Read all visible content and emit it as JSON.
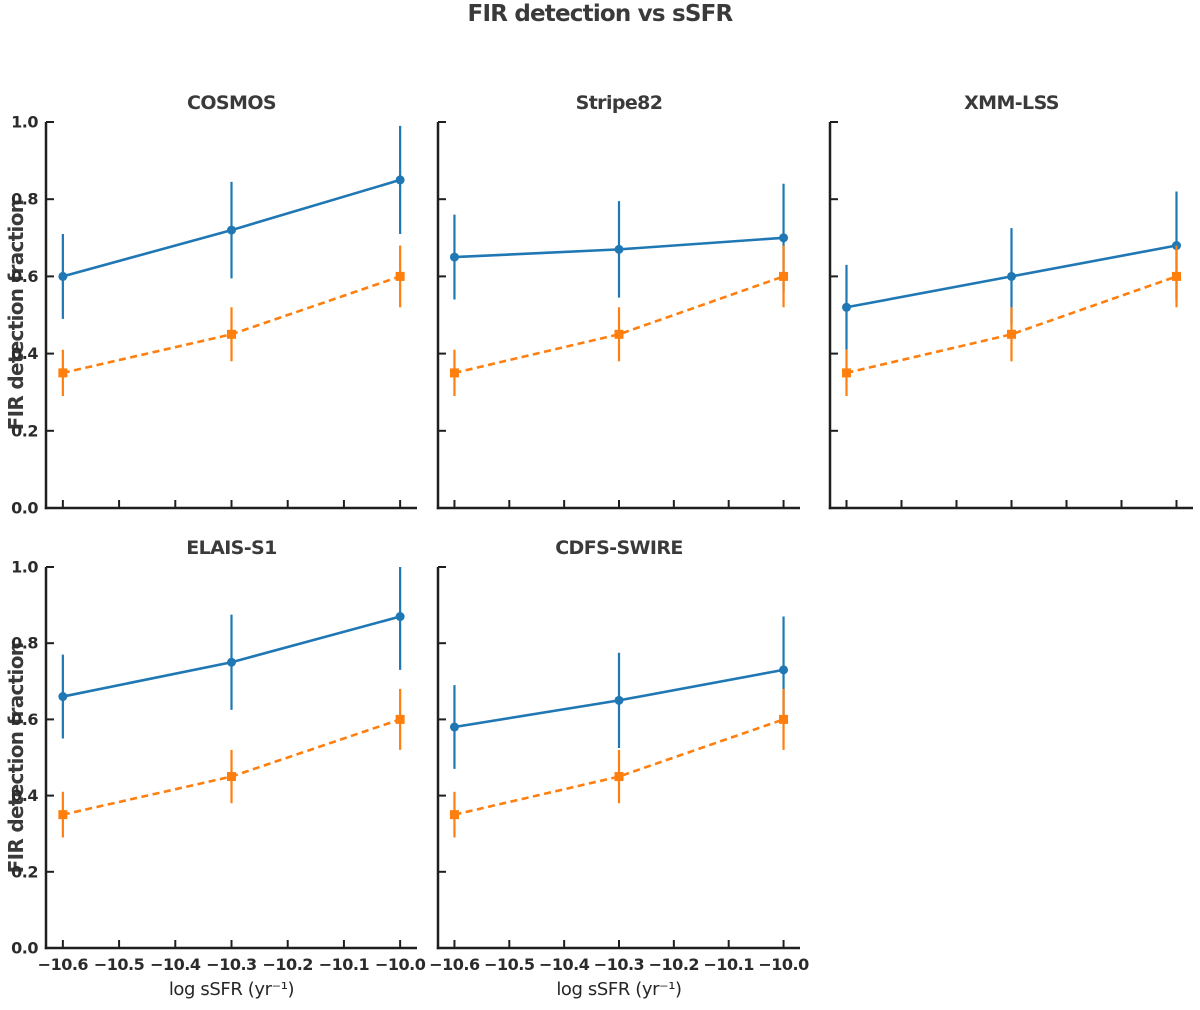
{
  "figure": {
    "title": "FIR detection vs sSFR",
    "background": "#ffffff"
  },
  "axes": {
    "xlabel": "log sSFR (yr⁻¹)",
    "ylabel": "FIR detection fraction",
    "xlim": [
      -10.63,
      -9.97
    ],
    "ylim": [
      0.0,
      1.0
    ],
    "xticks": [
      -10.6,
      -10.5,
      -10.4,
      -10.3,
      -10.2,
      -10.1,
      -10.0
    ],
    "xtick_labels": [
      "−10.6",
      "−10.5",
      "−10.4",
      "−10.3",
      "−10.2",
      "−10.1",
      "−10.0"
    ],
    "yticks": [
      0.0,
      0.2,
      0.4,
      0.6,
      0.8,
      1.0
    ],
    "ytick_labels": [
      "0.0",
      "0.2",
      "0.4",
      "0.6",
      "0.8",
      "1.0"
    ],
    "grid": false,
    "legend": false,
    "spines": [
      "left",
      "bottom"
    ],
    "tick_direction": "in"
  },
  "styles": {
    "blue": "#1f77b4",
    "orange": "#ff7f0e",
    "spine": "#1f1f1f",
    "text": "#3a3a3a"
  },
  "chart_data": [
    {
      "type": "line",
      "title": "COSMOS",
      "x": [
        -10.6,
        -10.3,
        -10.0
      ],
      "series": [
        {
          "name": "blue-solid-circles",
          "color": "#1f77b4",
          "line": "solid",
          "marker": "circle",
          "values": [
            0.6,
            0.72,
            0.85
          ],
          "yerr": [
            0.11,
            0.125,
            0.14
          ]
        },
        {
          "name": "orange-dashed-squares",
          "color": "#ff7f0e",
          "line": "dashed",
          "marker": "square",
          "values": [
            0.35,
            0.45,
            0.6
          ],
          "yerr": [
            0.06,
            0.07,
            0.08
          ]
        }
      ]
    },
    {
      "type": "line",
      "title": "Stripe82",
      "x": [
        -10.6,
        -10.3,
        -10.0
      ],
      "series": [
        {
          "name": "blue-solid-circles",
          "color": "#1f77b4",
          "line": "solid",
          "marker": "circle",
          "values": [
            0.65,
            0.67,
            0.7
          ],
          "yerr": [
            0.11,
            0.125,
            0.14
          ]
        },
        {
          "name": "orange-dashed-squares",
          "color": "#ff7f0e",
          "line": "dashed",
          "marker": "square",
          "values": [
            0.35,
            0.45,
            0.6
          ],
          "yerr": [
            0.06,
            0.07,
            0.08
          ]
        }
      ]
    },
    {
      "type": "line",
      "title": "XMM-LSS",
      "x": [
        -10.6,
        -10.3,
        -10.0
      ],
      "series": [
        {
          "name": "blue-solid-circles",
          "color": "#1f77b4",
          "line": "solid",
          "marker": "circle",
          "values": [
            0.52,
            0.6,
            0.68
          ],
          "yerr": [
            0.11,
            0.125,
            0.14
          ]
        },
        {
          "name": "orange-dashed-squares",
          "color": "#ff7f0e",
          "line": "dashed",
          "marker": "square",
          "values": [
            0.35,
            0.45,
            0.6
          ],
          "yerr": [
            0.06,
            0.07,
            0.08
          ]
        }
      ]
    },
    {
      "type": "line",
      "title": "ELAIS-S1",
      "x": [
        -10.6,
        -10.3,
        -10.0
      ],
      "series": [
        {
          "name": "blue-solid-circles",
          "color": "#1f77b4",
          "line": "solid",
          "marker": "circle",
          "values": [
            0.66,
            0.75,
            0.87
          ],
          "yerr": [
            0.11,
            0.125,
            0.14
          ]
        },
        {
          "name": "orange-dashed-squares",
          "color": "#ff7f0e",
          "line": "dashed",
          "marker": "square",
          "values": [
            0.35,
            0.45,
            0.6
          ],
          "yerr": [
            0.06,
            0.07,
            0.08
          ]
        }
      ]
    },
    {
      "type": "line",
      "title": "CDFS-SWIRE",
      "x": [
        -10.6,
        -10.3,
        -10.0
      ],
      "series": [
        {
          "name": "blue-solid-circles",
          "color": "#1f77b4",
          "line": "solid",
          "marker": "circle",
          "values": [
            0.58,
            0.65,
            0.73
          ],
          "yerr": [
            0.11,
            0.125,
            0.14
          ]
        },
        {
          "name": "orange-dashed-squares",
          "color": "#ff7f0e",
          "line": "dashed",
          "marker": "square",
          "values": [
            0.35,
            0.45,
            0.6
          ],
          "yerr": [
            0.06,
            0.07,
            0.08
          ]
        }
      ]
    }
  ]
}
